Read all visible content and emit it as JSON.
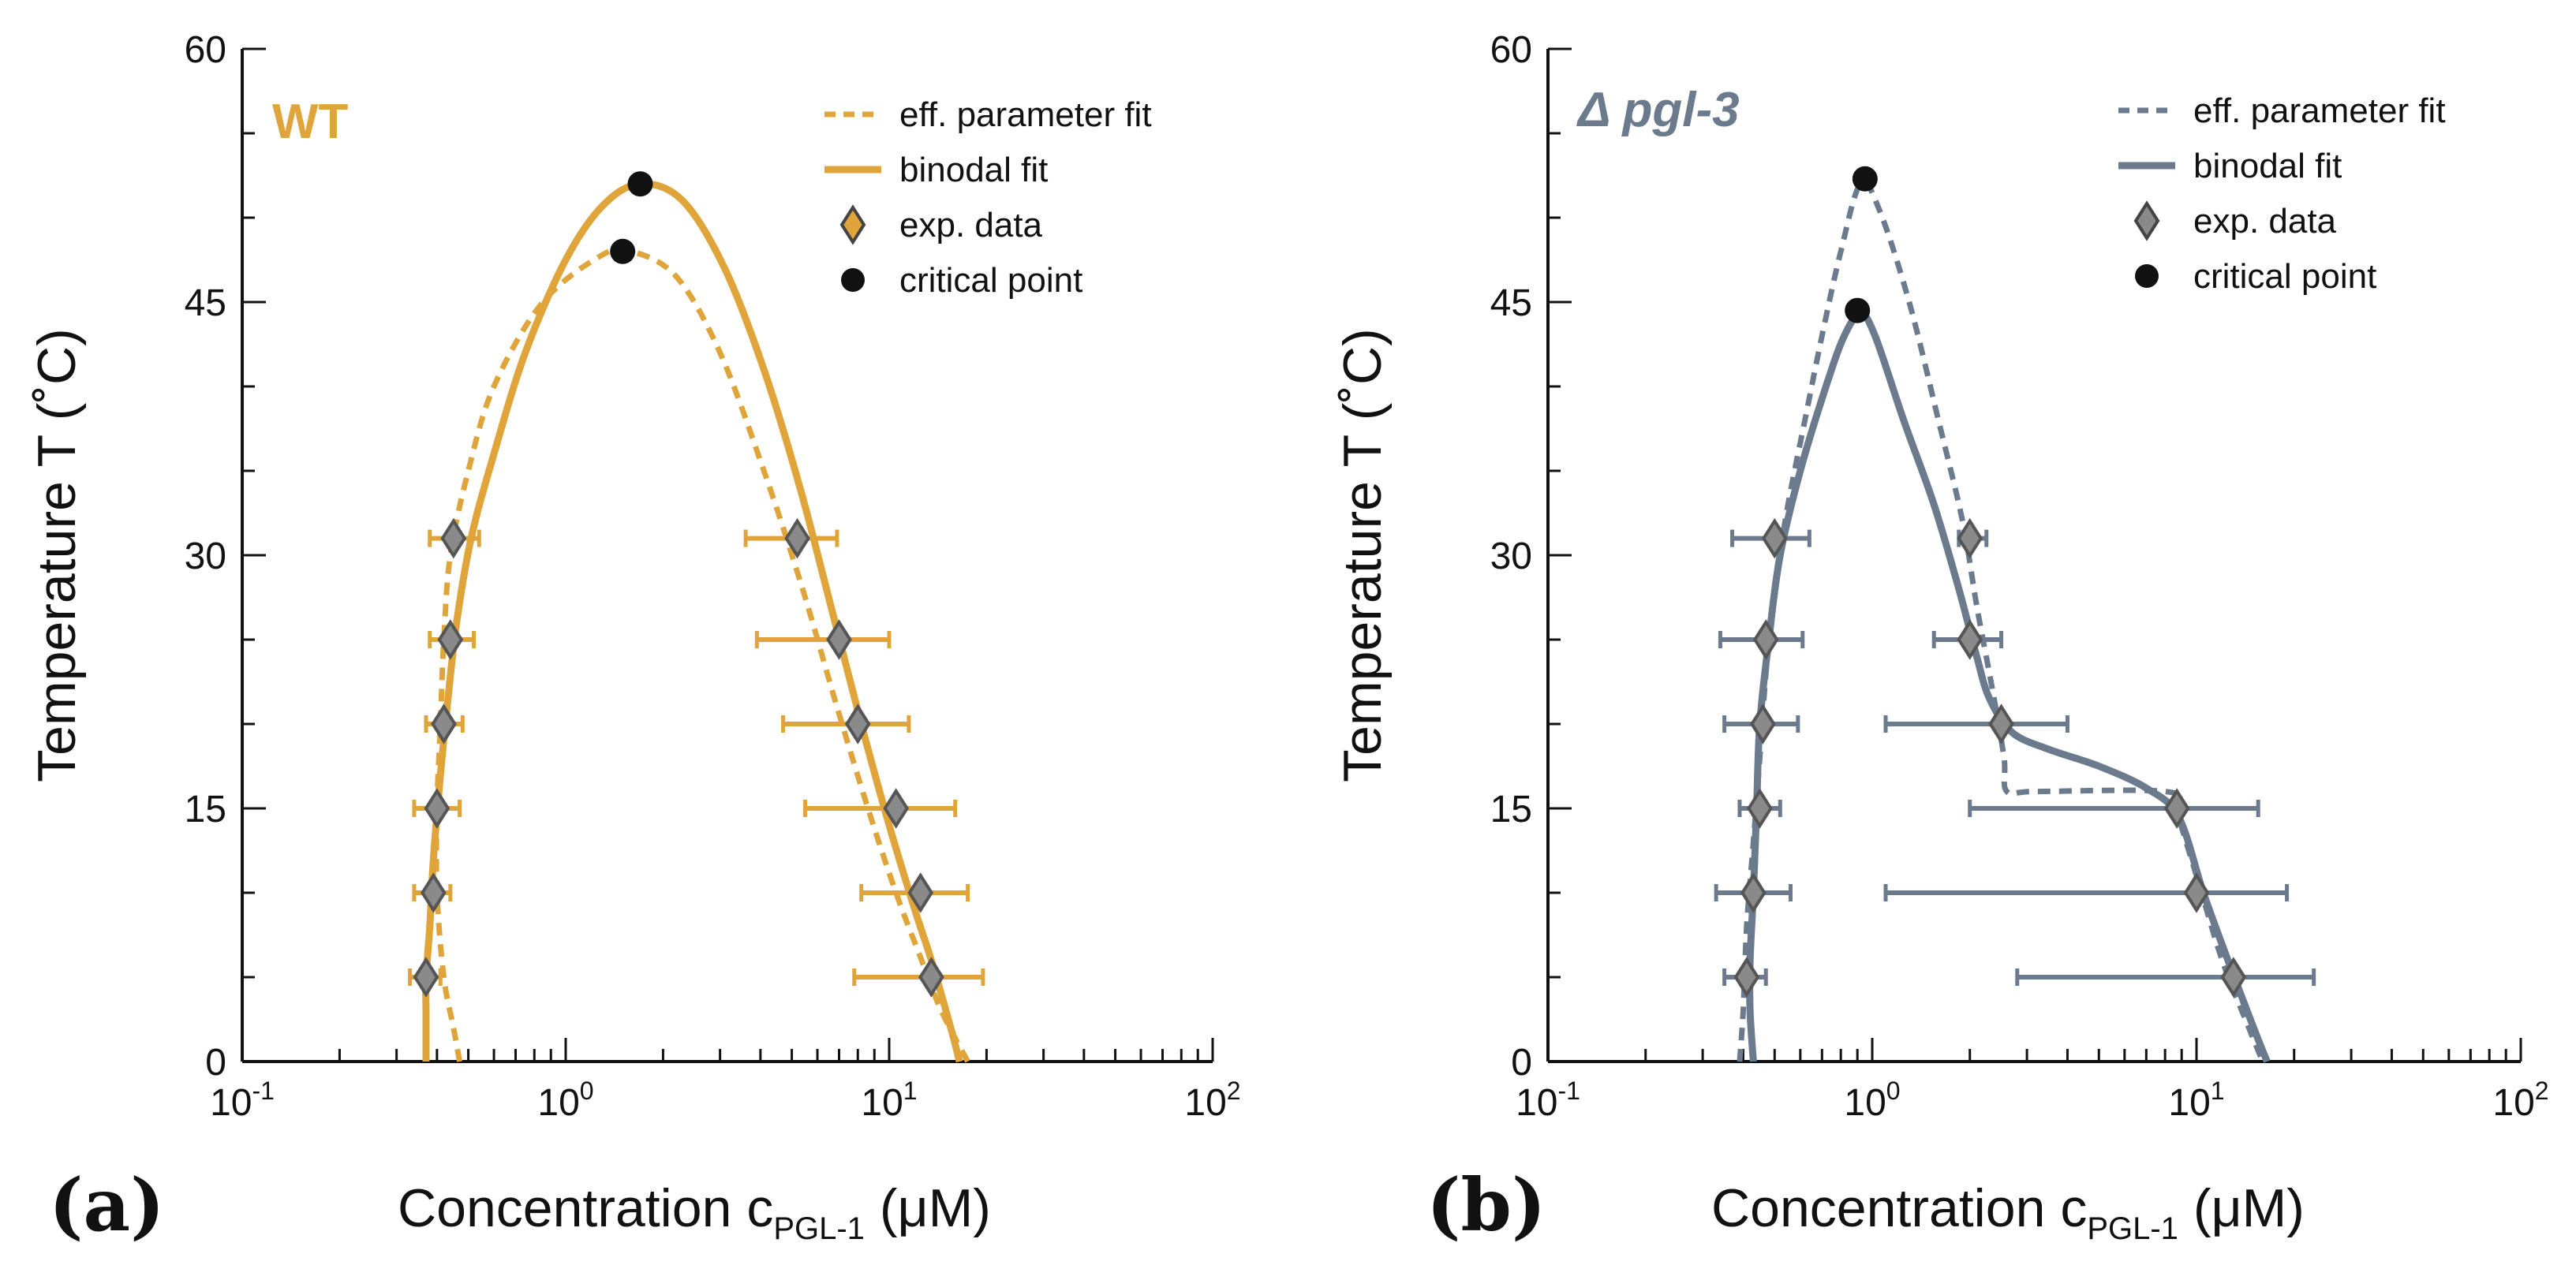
{
  "chart_data": [
    {
      "type": "scatter",
      "panel_label": "(a)",
      "title": "WT",
      "color": "#E0A53A",
      "xlabel": {
        "main": "Concentration c",
        "sub": "PGL-1",
        "unit": " (μM)"
      },
      "ylabel": "Temperature T (˚C)",
      "xscale": "log",
      "xlim": [
        0.1,
        100
      ],
      "ylim": [
        0,
        60
      ],
      "xticks": [
        {
          "value": 0.1,
          "base": "10",
          "exp": "-1"
        },
        {
          "value": 1,
          "base": "10",
          "exp": "0"
        },
        {
          "value": 10,
          "base": "10",
          "exp": "1"
        },
        {
          "value": 100,
          "base": "10",
          "exp": "2"
        }
      ],
      "yticks": [
        {
          "value": 0,
          "label": "0"
        },
        {
          "value": 15,
          "label": "15"
        },
        {
          "value": 30,
          "label": "30"
        },
        {
          "value": 45,
          "label": "45"
        },
        {
          "value": 60,
          "label": "60"
        }
      ],
      "legend": {
        "position": "top-right",
        "entries": [
          {
            "kind": "dashed",
            "label": "eff. parameter fit"
          },
          {
            "kind": "solid",
            "label": "binodal fit"
          },
          {
            "kind": "diamond",
            "label": "exp. data"
          },
          {
            "kind": "dot",
            "label": "critical point"
          }
        ]
      },
      "series": [
        {
          "name": "binodal fit",
          "style": "solid",
          "points": [
            [
              0.37,
              0
            ],
            [
              0.37,
              3
            ],
            [
              0.37,
              5
            ],
            [
              0.38,
              8
            ],
            [
              0.39,
              12
            ],
            [
              0.41,
              17
            ],
            [
              0.43,
              21
            ],
            [
              0.46,
              26
            ],
            [
              0.51,
              31
            ],
            [
              0.6,
              36
            ],
            [
              0.75,
              42
            ],
            [
              1.0,
              47.5
            ],
            [
              1.3,
              50.7
            ],
            [
              1.7,
              52
            ],
            [
              2.3,
              51
            ],
            [
              3.1,
              47
            ],
            [
              4.1,
              41
            ],
            [
              5.3,
              34
            ],
            [
              6.6,
              27
            ],
            [
              8.2,
              20
            ],
            [
              10.0,
              14
            ],
            [
              12.0,
              9
            ],
            [
              13.5,
              6
            ],
            [
              15.5,
              2
            ],
            [
              16.5,
              0
            ]
          ]
        },
        {
          "name": "eff. parameter fit",
          "style": "dashed",
          "points": [
            [
              0.47,
              0
            ],
            [
              0.45,
              2
            ],
            [
              0.42,
              5
            ],
            [
              0.4,
              10
            ],
            [
              0.4,
              15
            ],
            [
              0.41,
              20
            ],
            [
              0.42,
              25
            ],
            [
              0.44,
              30
            ],
            [
              0.5,
              35
            ],
            [
              0.6,
              40
            ],
            [
              0.85,
              45
            ],
            [
              1.3,
              47.8
            ],
            [
              1.6,
              48
            ],
            [
              2.2,
              46.5
            ],
            [
              3.0,
              42
            ],
            [
              4.1,
              35
            ],
            [
              5.4,
              28
            ],
            [
              6.9,
              21
            ],
            [
              8.6,
              15
            ],
            [
              10.5,
              10
            ],
            [
              12.6,
              6
            ],
            [
              14.5,
              3
            ],
            [
              17.5,
              0
            ]
          ]
        },
        {
          "name": "exp. data",
          "style": "diamond",
          "points": [
            {
              "x": 0.45,
              "y": 31,
              "xerr": [
                0.38,
                0.54
              ]
            },
            {
              "x": 0.44,
              "y": 25,
              "xerr": [
                0.38,
                0.52
              ]
            },
            {
              "x": 0.42,
              "y": 20,
              "xerr": [
                0.37,
                0.48
              ]
            },
            {
              "x": 0.4,
              "y": 15,
              "xerr": [
                0.34,
                0.47
              ]
            },
            {
              "x": 0.39,
              "y": 10,
              "xerr": [
                0.34,
                0.44
              ]
            },
            {
              "x": 0.37,
              "y": 5,
              "xerr": [
                0.33,
                0.41
              ]
            },
            {
              "x": 5.2,
              "y": 31,
              "xerr": [
                3.6,
                6.9
              ]
            },
            {
              "x": 7.0,
              "y": 25,
              "xerr": [
                3.9,
                10.0
              ]
            },
            {
              "x": 8.0,
              "y": 20,
              "xerr": [
                4.7,
                11.5
              ]
            },
            {
              "x": 10.5,
              "y": 15,
              "xerr": [
                5.5,
                16.0
              ]
            },
            {
              "x": 12.5,
              "y": 10,
              "xerr": [
                8.2,
                17.5
              ]
            },
            {
              "x": 13.5,
              "y": 5,
              "xerr": [
                7.8,
                19.5
              ]
            }
          ]
        },
        {
          "name": "critical point",
          "style": "dot",
          "points": [
            [
              1.7,
              52
            ],
            [
              1.5,
              48
            ]
          ]
        }
      ]
    },
    {
      "type": "scatter",
      "panel_label": "(b)",
      "title": "Δ pgl-3",
      "color": "#6B7A8C",
      "xlabel": {
        "main": "Concentration c",
        "sub": "PGL-1",
        "unit": " (μM)"
      },
      "ylabel": "Temperature T (˚C)",
      "xscale": "log",
      "xlim": [
        0.1,
        100
      ],
      "ylim": [
        0,
        60
      ],
      "xticks": [
        {
          "value": 0.1,
          "base": "10",
          "exp": "-1"
        },
        {
          "value": 1,
          "base": "10",
          "exp": "0"
        },
        {
          "value": 10,
          "base": "10",
          "exp": "1"
        },
        {
          "value": 100,
          "base": "10",
          "exp": "2"
        }
      ],
      "yticks": [
        {
          "value": 0,
          "label": "0"
        },
        {
          "value": 15,
          "label": "15"
        },
        {
          "value": 30,
          "label": "30"
        },
        {
          "value": 45,
          "label": "45"
        },
        {
          "value": 60,
          "label": "60"
        }
      ],
      "legend": {
        "position": "top-right",
        "entries": [
          {
            "kind": "dashed",
            "label": "eff. parameter fit"
          },
          {
            "kind": "solid",
            "label": "binodal fit"
          },
          {
            "kind": "diamond",
            "label": "exp. data"
          },
          {
            "kind": "dot",
            "label": "critical point"
          }
        ]
      },
      "series": [
        {
          "name": "binodal fit",
          "style": "solid",
          "points": [
            [
              0.43,
              0
            ],
            [
              0.42,
              3
            ],
            [
              0.42,
              6
            ],
            [
              0.43,
              10
            ],
            [
              0.44,
              15
            ],
            [
              0.45,
              20
            ],
            [
              0.48,
              25
            ],
            [
              0.52,
              30
            ],
            [
              0.6,
              35
            ],
            [
              0.72,
              40
            ],
            [
              0.82,
              43
            ],
            [
              0.92,
              44.3
            ],
            [
              1.02,
              43
            ],
            [
              1.25,
              38
            ],
            [
              1.55,
              33
            ],
            [
              1.85,
              28
            ],
            [
              2.1,
              24
            ],
            [
              2.3,
              21.5
            ],
            [
              2.7,
              19.5
            ],
            [
              3.5,
              18.5
            ],
            [
              5.0,
              17.5
            ],
            [
              7.0,
              16.2
            ],
            [
              8.8,
              14.5
            ],
            [
              10.5,
              10
            ],
            [
              12.5,
              6
            ],
            [
              15.0,
              2
            ],
            [
              16.5,
              0
            ]
          ]
        },
        {
          "name": "eff. parameter fit",
          "style": "dashed",
          "points": [
            [
              0.39,
              0
            ],
            [
              0.4,
              3
            ],
            [
              0.41,
              8
            ],
            [
              0.43,
              13
            ],
            [
              0.45,
              18
            ],
            [
              0.47,
              23
            ],
            [
              0.5,
              28
            ],
            [
              0.55,
              33
            ],
            [
              0.62,
              38
            ],
            [
              0.7,
              43
            ],
            [
              0.8,
              48
            ],
            [
              0.92,
              52
            ],
            [
              1.05,
              50.5
            ],
            [
              1.3,
              45
            ],
            [
              1.6,
              38
            ],
            [
              1.9,
              32
            ],
            [
              2.1,
              27
            ],
            [
              2.35,
              22
            ],
            [
              2.55,
              18
            ],
            [
              2.6,
              16
            ],
            [
              3.2,
              16
            ],
            [
              8.0,
              16
            ],
            [
              8.6,
              15
            ],
            [
              10.0,
              11
            ],
            [
              12.0,
              6
            ],
            [
              14.5,
              2
            ],
            [
              16.0,
              0
            ]
          ]
        },
        {
          "name": "exp. data",
          "style": "diamond",
          "points": [
            {
              "x": 0.5,
              "y": 31,
              "xerr": [
                0.37,
                0.64
              ]
            },
            {
              "x": 0.47,
              "y": 25,
              "xerr": [
                0.34,
                0.61
              ]
            },
            {
              "x": 0.46,
              "y": 20,
              "xerr": [
                0.35,
                0.59
              ]
            },
            {
              "x": 0.45,
              "y": 15,
              "xerr": [
                0.39,
                0.52
              ]
            },
            {
              "x": 0.43,
              "y": 10,
              "xerr": [
                0.33,
                0.56
              ]
            },
            {
              "x": 0.41,
              "y": 5,
              "xerr": [
                0.35,
                0.47
              ]
            },
            {
              "x": 2.0,
              "y": 31,
              "xerr": [
                1.85,
                2.25
              ]
            },
            {
              "x": 2.0,
              "y": 25,
              "xerr": [
                1.55,
                2.5
              ]
            },
            {
              "x": 2.5,
              "y": 20,
              "xerr": [
                1.1,
                4.0
              ]
            },
            {
              "x": 8.7,
              "y": 15,
              "xerr": [
                2.0,
                15.5
              ]
            },
            {
              "x": 10.0,
              "y": 10,
              "xerr": [
                1.1,
                19.0
              ]
            },
            {
              "x": 13.0,
              "y": 5,
              "xerr": [
                2.8,
                23.0
              ]
            }
          ]
        },
        {
          "name": "critical point",
          "style": "dot",
          "points": [
            [
              0.95,
              52.3
            ],
            [
              0.9,
              44.5
            ]
          ]
        }
      ]
    }
  ]
}
